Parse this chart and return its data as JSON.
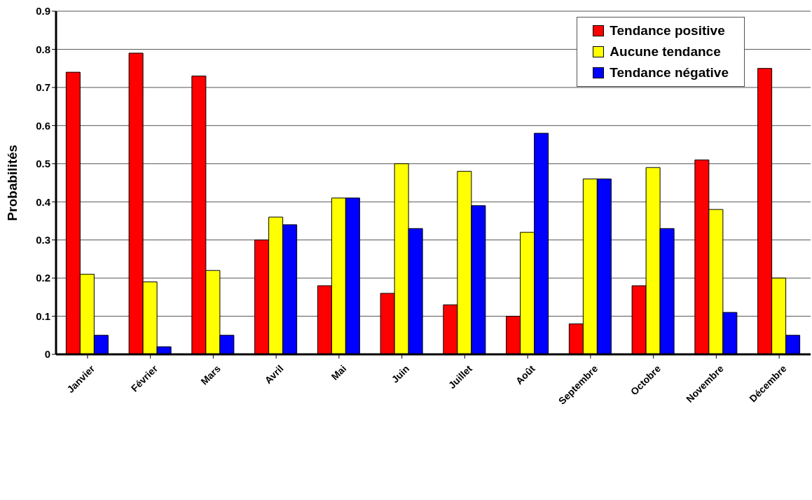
{
  "chart_data": {
    "type": "bar",
    "ylabel": "Probabilités",
    "categories": [
      "Janvier",
      "Février",
      "Mars",
      "Avril",
      "Mai",
      "Juin",
      "Juillet",
      "Août",
      "Septembre",
      "Octobre",
      "Novembre",
      "Décembre"
    ],
    "series": [
      {
        "name": "Tendance positive",
        "color": "#ff0000",
        "values": [
          0.74,
          0.79,
          0.73,
          0.3,
          0.18,
          0.16,
          0.13,
          0.1,
          0.08,
          0.18,
          0.51,
          0.75
        ]
      },
      {
        "name": "Aucune tendance",
        "color": "#ffff00",
        "values": [
          0.21,
          0.19,
          0.22,
          0.36,
          0.41,
          0.5,
          0.48,
          0.32,
          0.46,
          0.49,
          0.38,
          0.2
        ]
      },
      {
        "name": "Tendance négative",
        "color": "#0000ff",
        "values": [
          0.05,
          0.02,
          0.05,
          0.34,
          0.41,
          0.33,
          0.39,
          0.58,
          0.46,
          0.33,
          0.11,
          0.05
        ]
      }
    ],
    "ylim": [
      0,
      0.9
    ],
    "yticks": [
      0,
      0.1,
      0.2,
      0.3,
      0.4,
      0.5,
      0.6,
      0.7,
      0.8,
      0.9
    ],
    "grid": "y",
    "legend": "top right"
  }
}
